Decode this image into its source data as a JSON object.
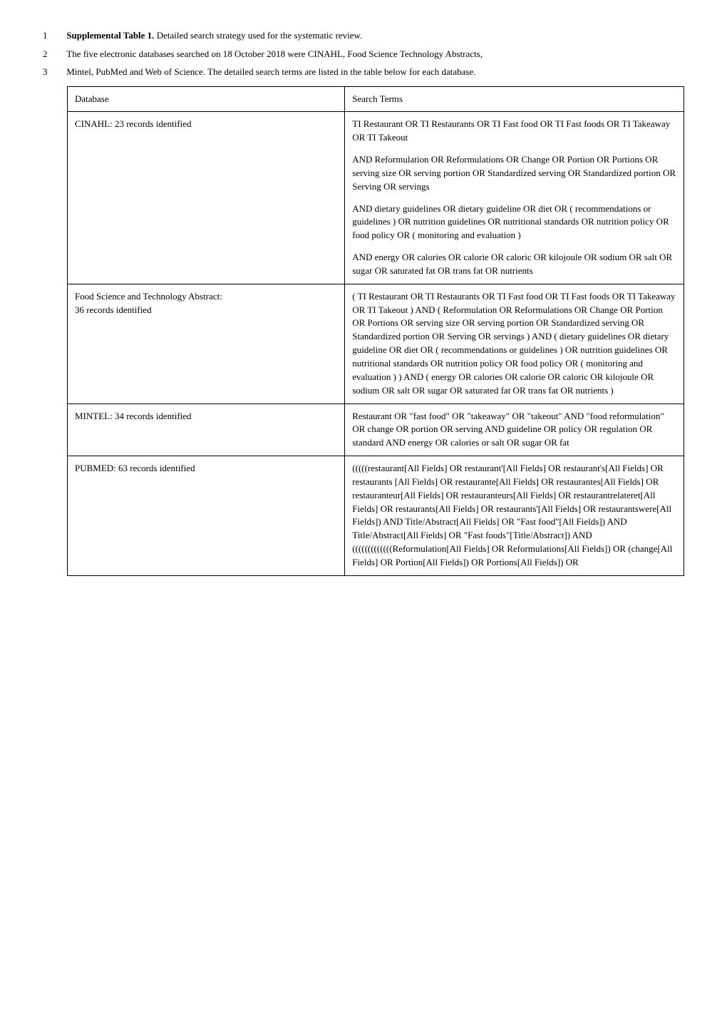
{
  "intro": {
    "line1_num": "1",
    "line1_bold": "Supplemental Table 1.",
    "line1_rest": " Detailed search strategy used for the systematic review.",
    "line2_num": "2",
    "line2_text": "The five electronic databases searched on 18 October 2018 were CINAHL, Food Science Technology Abstracts,",
    "line3_num": "3",
    "line3_text": "Mintel, PubMed and Web of Science. The detailed search terms are listed in the table below for each database."
  },
  "table": {
    "header": {
      "col1": "Database",
      "col2": "Search Terms"
    },
    "rows": [
      {
        "db": "CINAHL: 23 records identified",
        "terms": [
          "TI Restaurant OR TI Restaurants OR TI Fast food OR TI Fast foods OR TI Takeaway OR TI Takeout",
          "AND Reformulation OR Reformulations OR Change OR Portion OR Portions OR serving size OR serving portion OR Standardized serving OR Standardized portion OR Serving OR servings",
          "AND dietary guidelines OR dietary guideline OR diet OR ( recommendations or guidelines ) OR nutrition guidelines OR nutritional standards OR nutrition policy OR food policy OR ( monitoring and evaluation )",
          "AND energy OR calories OR calorie OR caloric OR kilojoule OR sodium OR salt OR sugar OR saturated fat OR trans fat OR nutrients"
        ]
      },
      {
        "db_multi": [
          "Food Science and Technology Abstract:",
          "",
          "36 records identified"
        ],
        "terms": [
          "( TI Restaurant OR TI Restaurants OR TI Fast food OR TI Fast foods OR TI Takeaway OR TI Takeout ) AND ( Reformulation OR Reformulations OR Change OR Portion OR Portions OR serving size OR serving portion OR Standardized serving OR Standardized portion OR Serving OR servings ) AND ( dietary guidelines OR dietary guideline OR diet OR ( recommendations or guidelines ) OR nutrition guidelines OR nutritional standards OR nutrition policy OR food policy OR ( monitoring and evaluation ) ) AND ( energy OR calories OR calorie OR caloric OR kilojoule OR sodium OR salt OR sugar OR saturated fat OR trans fat OR nutrients )"
        ]
      },
      {
        "db": "MINTEL: 34 records identified",
        "terms": [
          "Restaurant OR \"fast food\" OR \"takeaway\" OR \"takeout\" AND \"food reformulation\" OR change OR portion OR serving AND guideline OR policy OR regulation OR standard AND energy OR calories or salt OR sugar OR fat"
        ]
      },
      {
        "db": "PUBMED: 63 records identified",
        "terms": [
          "(((((restaurant[All Fields] OR restaurant'[All Fields] OR restaurant's[All Fields] OR restaurants [All Fields] OR restaurante[All Fields] OR restaurantes[All Fields] OR restauranteur[All Fields] OR restauranteurs[All Fields] OR restaurantrelateret[All Fields] OR restaurants[All Fields] OR restaurants'[All Fields] OR restaurantswere[All Fields]) AND Title/Abstract[All Fields] OR \"Fast food\"[All Fields]) AND Title/Abstract[All Fields] OR \"Fast foods\"[Title/Abstract]) AND (((((((((((((Reformulation[All Fields] OR Reformulations[All Fields]) OR (change[All Fields] OR Portion[All Fields]) OR Portions[All Fields]) OR"
        ]
      }
    ]
  }
}
